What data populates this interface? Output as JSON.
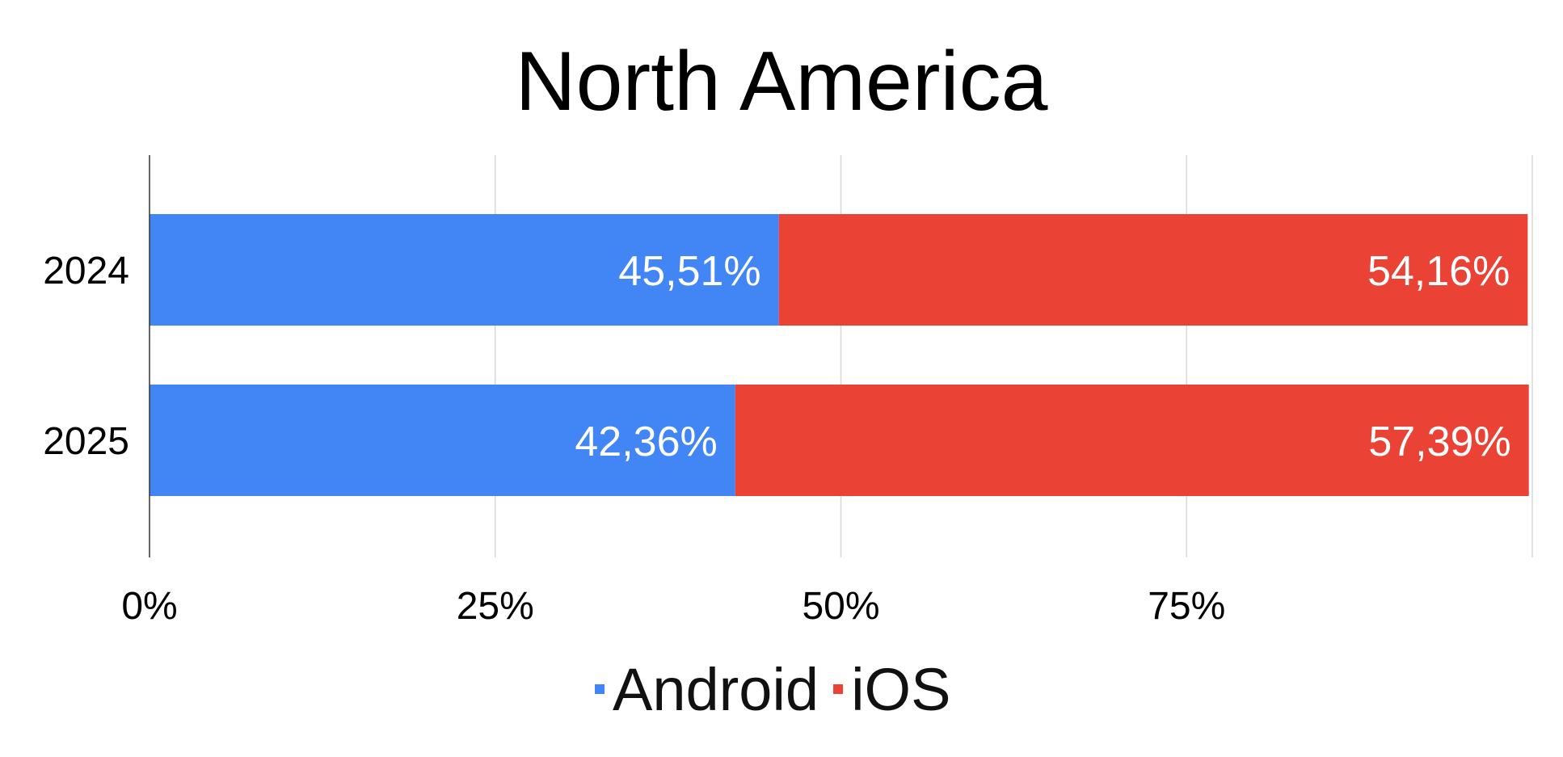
{
  "chart_data": {
    "type": "bar",
    "orientation": "horizontal",
    "stacked": true,
    "title": "North America",
    "categories": [
      "2024",
      "2025"
    ],
    "series": [
      {
        "name": "Android",
        "color": "#4285F4",
        "values": [
          45.51,
          42.36
        ],
        "labels": [
          "45,51%",
          "42,36%"
        ]
      },
      {
        "name": "iOS",
        "color": "#EA4335",
        "values": [
          54.16,
          57.39
        ],
        "labels": [
          "54,16%",
          "57,39%"
        ]
      }
    ],
    "x_ticks": [
      {
        "value": 0,
        "label": "0%"
      },
      {
        "value": 25,
        "label": "25%"
      },
      {
        "value": 50,
        "label": "50%"
      },
      {
        "value": 75,
        "label": "75%"
      },
      {
        "value": 100,
        "label": ""
      }
    ],
    "xlim": [
      0,
      100
    ],
    "grid": true,
    "legend_position": "bottom-center"
  }
}
